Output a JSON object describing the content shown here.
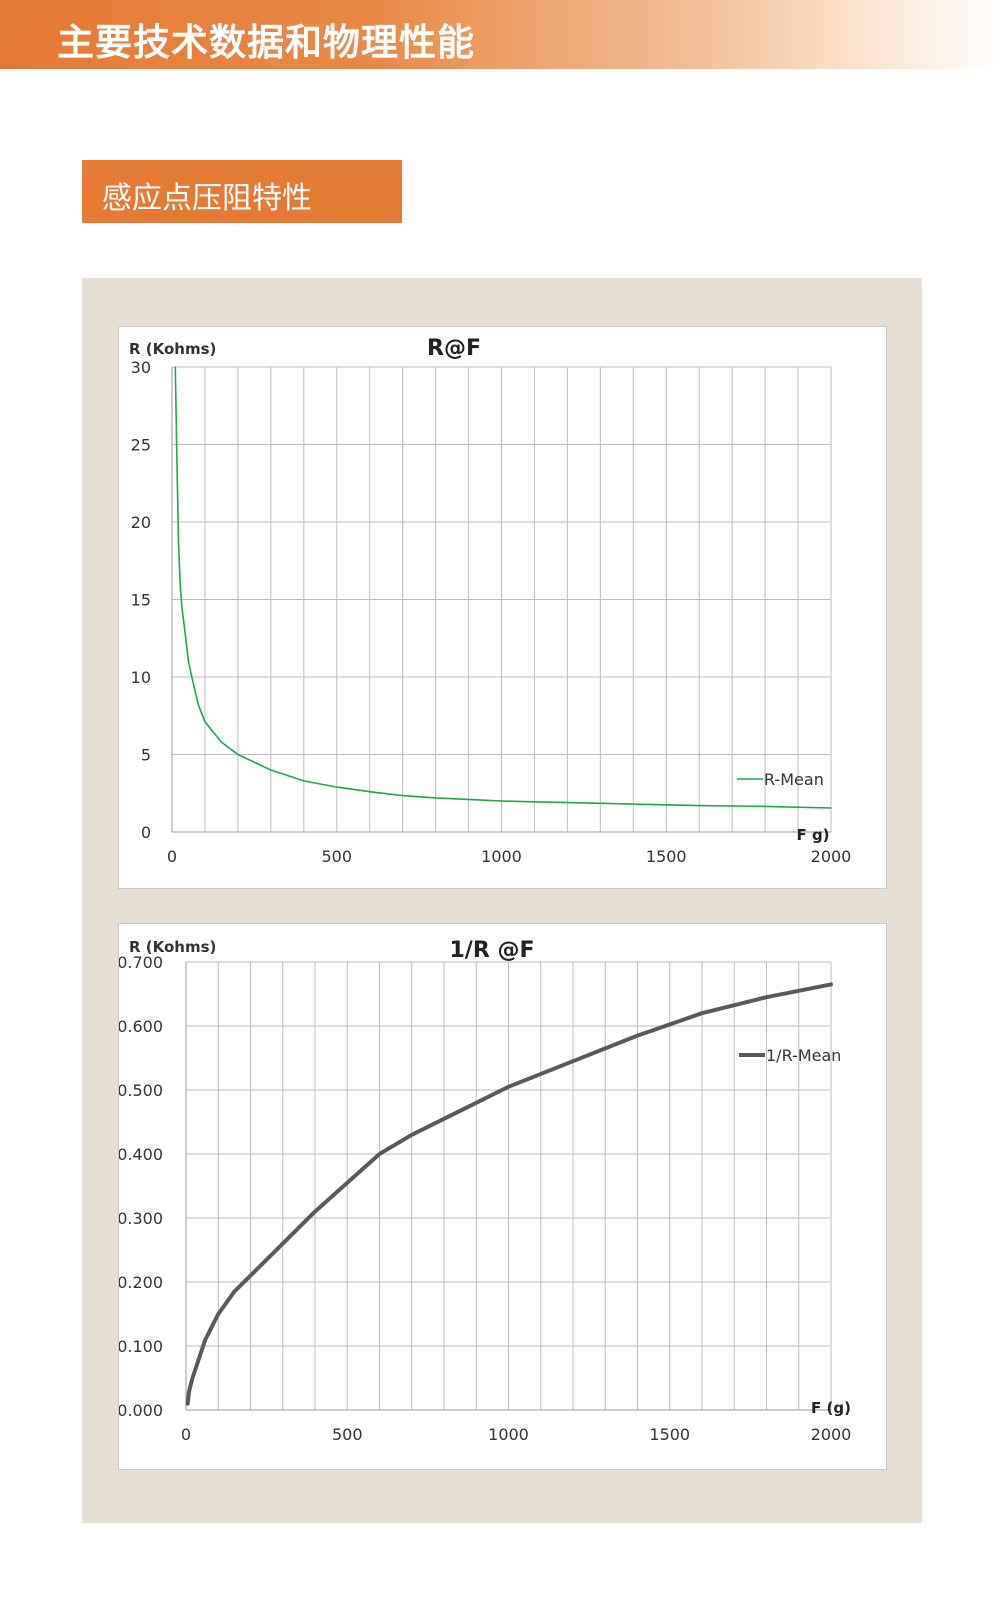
{
  "header": {
    "title": "主要技术数据和物理性能"
  },
  "section": {
    "title": "感应点压阻特性"
  },
  "chart_data": [
    {
      "type": "line",
      "title": "R@F",
      "ylabel": "R (Kohms)",
      "xlabel": "F g)",
      "xlim": [
        0,
        2000
      ],
      "ylim": [
        0,
        30
      ],
      "x_ticks": [
        "0",
        "500",
        "1000",
        "1500",
        "2000"
      ],
      "y_ticks": [
        "0",
        "5",
        "10",
        "15",
        "20",
        "25",
        "30"
      ],
      "grid": true,
      "legend_position": "right",
      "color": "#22a64a",
      "series": [
        {
          "name": "R-Mean",
          "x": [
            10,
            15,
            20,
            25,
            30,
            40,
            50,
            60,
            80,
            100,
            150,
            200,
            300,
            400,
            500,
            600,
            700,
            800,
            900,
            1000,
            1200,
            1400,
            1600,
            1800,
            2000
          ],
          "y": [
            30,
            24,
            18.5,
            16,
            14.5,
            12.8,
            11,
            10,
            8.2,
            7.1,
            5.8,
            5.0,
            4.0,
            3.3,
            2.9,
            2.6,
            2.35,
            2.2,
            2.1,
            2.0,
            1.9,
            1.8,
            1.7,
            1.65,
            1.55
          ]
        }
      ]
    },
    {
      "type": "line",
      "title": "1/R @F",
      "ylabel": "R (Kohms)",
      "xlabel": "F (g)",
      "xlim": [
        0,
        2000
      ],
      "ylim": [
        0,
        0.7
      ],
      "x_ticks": [
        "0",
        "500",
        "1000",
        "1500",
        "2000"
      ],
      "y_ticks": [
        "0.000",
        "0.100",
        "0.200",
        "0.300",
        "0.400",
        "0.500",
        "0.600",
        "0.700"
      ],
      "grid": true,
      "legend_position": "right",
      "color": "#5a5a5a",
      "series": [
        {
          "name": "1/R-Mean",
          "x": [
            5,
            10,
            20,
            40,
            60,
            80,
            100,
            150,
            200,
            300,
            400,
            500,
            600,
            700,
            800,
            900,
            1000,
            1200,
            1400,
            1600,
            1800,
            2000
          ],
          "y": [
            0.01,
            0.03,
            0.05,
            0.08,
            0.11,
            0.13,
            0.15,
            0.185,
            0.21,
            0.26,
            0.31,
            0.355,
            0.4,
            0.43,
            0.455,
            0.48,
            0.505,
            0.545,
            0.585,
            0.62,
            0.645,
            0.665
          ]
        }
      ]
    }
  ]
}
